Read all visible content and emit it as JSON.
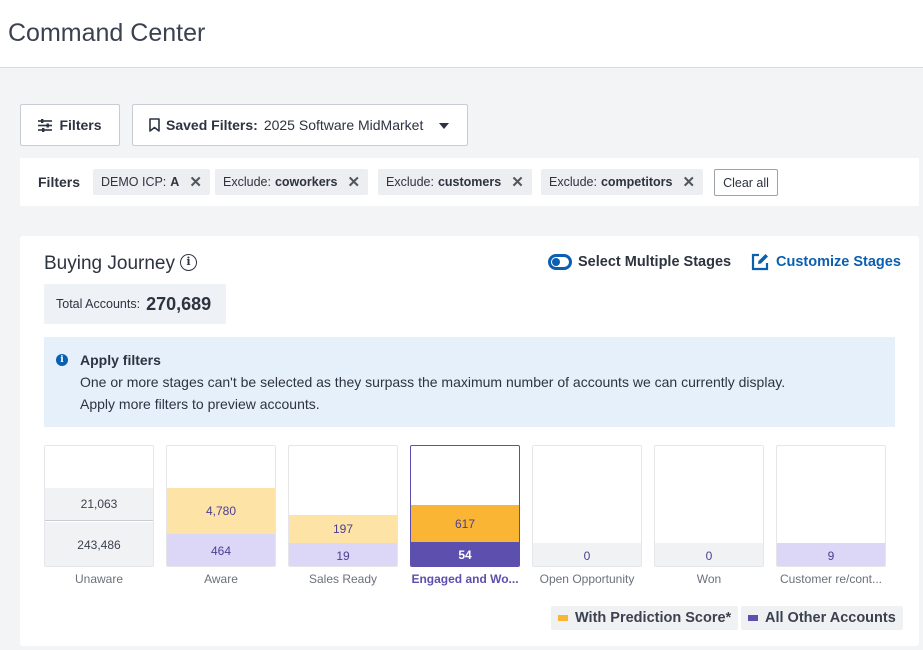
{
  "header": {
    "title": "Command Center"
  },
  "toolbar": {
    "filters_label": "Filters",
    "saved_filters_prefix": "Saved Filters:",
    "saved_filters_value": "2025 Software MidMarket"
  },
  "filter_bar": {
    "label": "Filters",
    "chips": [
      {
        "prefix": "DEMO ICP:",
        "value": "A"
      },
      {
        "prefix": "Exclude:",
        "value": "coworkers"
      },
      {
        "prefix": "Exclude:",
        "value": "customers"
      },
      {
        "prefix": "Exclude:",
        "value": "competitors"
      }
    ],
    "clear_all": "Clear all"
  },
  "journey": {
    "title": "Buying Journey",
    "select_multiple": "Select Multiple Stages",
    "customize": "Customize Stages",
    "total_label": "Total Accounts:",
    "total_value": "270,689",
    "alert": {
      "title": "Apply filters",
      "line1": "One or more stages can't be selected as they surpass the maximum number of accounts we can currently display.",
      "line2": "Apply more filters to preview accounts."
    },
    "stages": [
      {
        "label": "Unaware",
        "top_value": "21,063",
        "bottom_value": "243,486"
      },
      {
        "label": "Aware",
        "top_value": "4,780",
        "bottom_value": "464"
      },
      {
        "label": "Sales Ready",
        "top_value": "197",
        "bottom_value": "19"
      },
      {
        "label": "Engaged and Wo...",
        "top_value": "617",
        "bottom_value": "54"
      },
      {
        "label": "Open Opportunity",
        "top_value": "",
        "bottom_value": "0"
      },
      {
        "label": "Won",
        "top_value": "",
        "bottom_value": "0"
      },
      {
        "label": "Customer re/cont...",
        "top_value": "",
        "bottom_value": "9"
      }
    ],
    "legend": {
      "prediction": "With Prediction Score*",
      "other": "All Other Accounts"
    }
  },
  "colors": {
    "accent": "#0b5fb0",
    "prediction": "#fbb535",
    "prediction_light": "#fde3a6",
    "other": "#5d4fae",
    "other_light": "#ddd7f7"
  }
}
